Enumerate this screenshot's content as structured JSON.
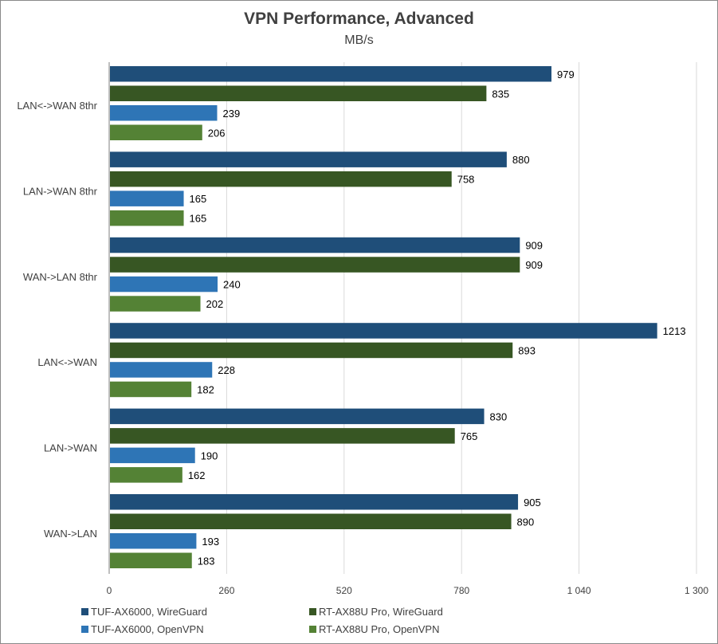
{
  "chart_data": {
    "type": "bar",
    "orientation": "horizontal",
    "title": "VPN Performance, Advanced",
    "subtitle": "MB/s",
    "xlabel": "",
    "ylabel": "",
    "xlim": [
      0,
      1300
    ],
    "ticks": [
      0,
      260,
      520,
      780,
      1040,
      1300
    ],
    "tick_labels": [
      "0",
      "260",
      "520",
      "780",
      "1 040",
      "1 300"
    ],
    "grid": true,
    "legend_position": "bottom-left",
    "categories": [
      "LAN<->WAN 8thr",
      "LAN->WAN 8thr",
      "WAN->LAN 8thr",
      "LAN<->WAN",
      "LAN->WAN",
      "WAN->LAN"
    ],
    "series": [
      {
        "name": "TUF-AX6000, WireGuard",
        "color": "#1f4e79",
        "values": [
          979,
          880,
          909,
          1213,
          830,
          905
        ]
      },
      {
        "name": "RT-AX88U Pro, WireGuard",
        "color": "#375623",
        "values": [
          835,
          758,
          909,
          893,
          765,
          890
        ]
      },
      {
        "name": "TUF-AX6000, OpenVPN",
        "color": "#2e75b6",
        "values": [
          239,
          165,
          240,
          228,
          190,
          193
        ]
      },
      {
        "name": "RT-AX88U Pro, OpenVPN",
        "color": "#548235",
        "values": [
          206,
          165,
          202,
          182,
          162,
          183
        ]
      }
    ]
  }
}
